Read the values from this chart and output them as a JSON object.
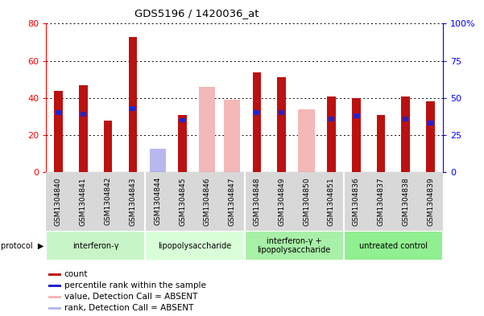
{
  "title": "GDS5196 / 1420036_at",
  "samples": [
    "GSM1304840",
    "GSM1304841",
    "GSM1304842",
    "GSM1304843",
    "GSM1304844",
    "GSM1304845",
    "GSM1304846",
    "GSM1304847",
    "GSM1304848",
    "GSM1304849",
    "GSM1304850",
    "GSM1304851",
    "GSM1304836",
    "GSM1304837",
    "GSM1304838",
    "GSM1304839"
  ],
  "count_values": [
    44,
    47,
    28,
    73,
    null,
    31,
    null,
    null,
    54,
    51,
    null,
    41,
    40,
    31,
    41,
    38
  ],
  "percentile_values": [
    40,
    39,
    null,
    43,
    null,
    35,
    null,
    null,
    40,
    40,
    null,
    36,
    38,
    null,
    36,
    33
  ],
  "absent_value": [
    null,
    null,
    null,
    null,
    6,
    null,
    46,
    39,
    null,
    null,
    34,
    null,
    null,
    null,
    null,
    null
  ],
  "absent_rank": [
    null,
    null,
    null,
    null,
    16,
    null,
    null,
    null,
    null,
    null,
    null,
    null,
    null,
    null,
    null,
    null
  ],
  "groups": [
    {
      "label": "interferon-γ",
      "start": 0,
      "end": 4,
      "color": "#c8f5c8"
    },
    {
      "label": "lipopolysaccharide",
      "start": 4,
      "end": 8,
      "color": "#d8ffd8"
    },
    {
      "label": "interferon-γ +\nlipopolysaccharide",
      "start": 8,
      "end": 12,
      "color": "#a8f0a8"
    },
    {
      "label": "untreated control",
      "start": 12,
      "end": 16,
      "color": "#90ef90"
    }
  ],
  "left_ylim": [
    0,
    80
  ],
  "right_ylim": [
    0,
    100
  ],
  "left_yticks": [
    0,
    20,
    40,
    60,
    80
  ],
  "right_yticks": [
    0,
    25,
    50,
    75,
    100
  ],
  "right_yticklabels": [
    "0",
    "25",
    "50",
    "75",
    "100%"
  ],
  "bar_color_red": "#bb1111",
  "bar_color_blue": "#2222cc",
  "bar_color_pink": "#f4b8b8",
  "bar_color_lightblue": "#b8b8ee",
  "absent_rank_value_scale": 20,
  "red_bar_width": 0.35,
  "wide_bar_width": 0.65
}
